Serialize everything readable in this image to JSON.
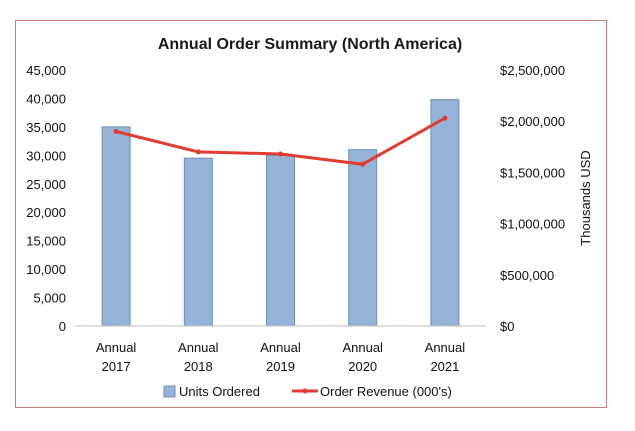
{
  "chart_data": {
    "type": "bar",
    "title": "Annual Order Summary (North America)",
    "categories": [
      [
        "Annual",
        "2017"
      ],
      [
        "Annual",
        "2018"
      ],
      [
        "Annual",
        "2019"
      ],
      [
        "Annual",
        "2020"
      ],
      [
        "Annual",
        "2021"
      ]
    ],
    "series": [
      {
        "name": "Units Ordered",
        "type": "bar",
        "axis": "left",
        "color": "#95b3d7",
        "values": [
          35000,
          29500,
          30000,
          31000,
          39800
        ]
      },
      {
        "name": "Order Revenue (000's)",
        "type": "line",
        "axis": "right",
        "color": "#e03c31",
        "values": [
          1900000,
          1700000,
          1680000,
          1580000,
          2030000
        ]
      }
    ],
    "y_left": {
      "min": 0,
      "max": 45000,
      "ticks": [
        "0",
        "5,000",
        "10,000",
        "15,000",
        "20,000",
        "25,000",
        "30,000",
        "35,000",
        "40,000",
        "45,000"
      ]
    },
    "y_right": {
      "min": 0,
      "max": 2500000,
      "label": "Thousands USD",
      "ticks": [
        "$0",
        "$500,000",
        "$1,000,000",
        "$1,500,000",
        "$2,000,000",
        "$2,500,000"
      ]
    },
    "legend": "bottom",
    "grid": false
  }
}
